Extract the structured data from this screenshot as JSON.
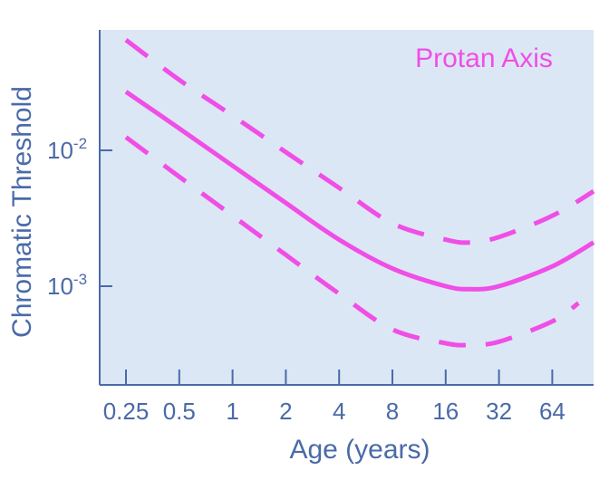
{
  "chart_data": {
    "type": "line",
    "title": "Protan Axis",
    "xlabel": "Age (years)",
    "ylabel": "Chromatic Threshold",
    "x_scale": "log2",
    "y_scale": "log10",
    "x_ticks": [
      0.25,
      0.5,
      1,
      2,
      4,
      8,
      16,
      32,
      64
    ],
    "x_tick_labels": [
      "0.25",
      "0.5",
      "1",
      "2",
      "4",
      "8",
      "16",
      "32",
      "64"
    ],
    "y_ticks": [
      {
        "value": 0.01,
        "base": "10",
        "exponent": "-2"
      },
      {
        "value": 0.001,
        "base": "10",
        "exponent": "-3"
      }
    ],
    "xlim": [
      0.2,
      120
    ],
    "ylim": [
      0.00025,
      0.09
    ],
    "grid": false,
    "colors": {
      "series": "#f04ee6",
      "axes": "#4a6aa8",
      "plot_background": "#dce7f6"
    },
    "series": [
      {
        "style": "dashed",
        "x": [
          0.25,
          0.5,
          1,
          2,
          4,
          8,
          16,
          22,
          32,
          64,
          120
        ],
        "y": [
          0.065,
          0.033,
          0.018,
          0.0097,
          0.0053,
          0.0029,
          0.0022,
          0.0021,
          0.0023,
          0.0033,
          0.005
        ]
      },
      {
        "style": "solid",
        "x": [
          0.25,
          0.5,
          1,
          2,
          4,
          8,
          16,
          22,
          32,
          64,
          120
        ],
        "y": [
          0.027,
          0.0145,
          0.0077,
          0.0041,
          0.0022,
          0.00135,
          0.001,
          0.00095,
          0.001,
          0.0014,
          0.0021
        ]
      },
      {
        "style": "dashed",
        "x": [
          0.25,
          0.5,
          1,
          2,
          4,
          8,
          16,
          22,
          32,
          64,
          90
        ],
        "y": [
          0.0125,
          0.0064,
          0.0033,
          0.0017,
          0.00088,
          0.00048,
          0.00038,
          0.00037,
          0.00039,
          0.00055,
          0.00075
        ]
      }
    ]
  }
}
